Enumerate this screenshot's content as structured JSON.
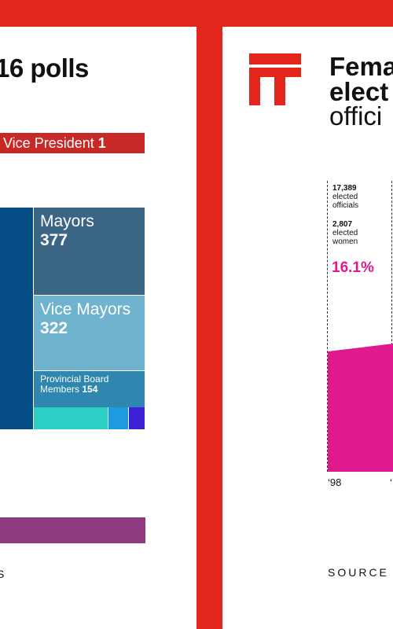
{
  "left": {
    "title": "16 polls",
    "vice_president_label": "Vice President",
    "vice_president_value": "1",
    "tiles": {
      "mayors": {
        "label": "Mayors",
        "value": "377"
      },
      "vice_mayors": {
        "label": "Vice Mayors",
        "value": "322"
      },
      "provincial": {
        "label_line1": "Provincial Board",
        "label_line2": "Members",
        "value": "154"
      }
    },
    "source": "S"
  },
  "right": {
    "title_line1": "Fema",
    "title_line2": "elect",
    "title_line3": "offici",
    "annotation": {
      "officials_count": "17,389",
      "officials_text1": "elected",
      "officials_text2": "officials",
      "women_count": "2,807",
      "women_text1": "elected",
      "women_text2": "women",
      "percent": "16.1%"
    },
    "x_ticks": [
      "‘98",
      "‘"
    ],
    "source": "SOURCE"
  },
  "colors": {
    "background_red": "#e2261c",
    "vp_bar": "#c72a26",
    "mayors": "#3a6584",
    "vice_mayors": "#6fb3cf",
    "provincial": "#2f86ae",
    "navy": "#064f86",
    "teal": "#2bcfc4",
    "blue": "#1e9be0",
    "violet": "#3c22d4",
    "purple": "#8f3a80",
    "magenta": "#e0198e"
  }
}
